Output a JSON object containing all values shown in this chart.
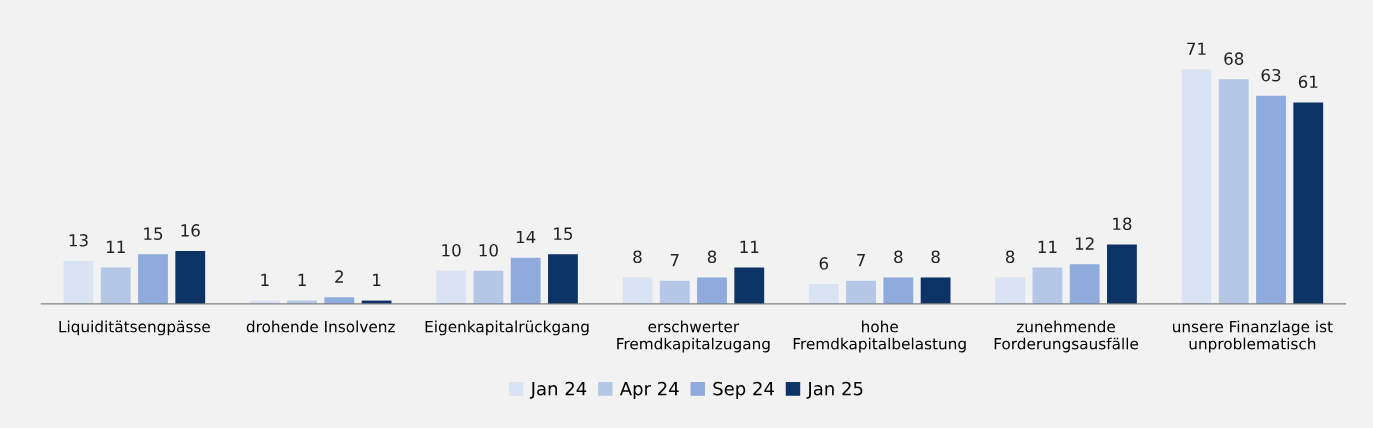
{
  "chart_data": {
    "type": "bar",
    "categories": [
      "Liquiditätsengpässe",
      "drohende Insolvenz",
      "Eigenkapitalrückgang",
      "erschwerter\nFremdkapitalzugang",
      "hohe\nFremdkapitalbelastung",
      "zunehmende\nForderungsausfälle",
      "unsere Finanzlage ist\nunproblematisch"
    ],
    "series": [
      {
        "name": "Jan 24",
        "color": "#dae3f3",
        "values": [
          13,
          1,
          10,
          8,
          6,
          8,
          71
        ]
      },
      {
        "name": "Apr 24",
        "color": "#b4c7e7",
        "values": [
          11,
          1,
          10,
          7,
          7,
          11,
          68
        ]
      },
      {
        "name": "Sep 24",
        "color": "#8faadc",
        "values": [
          15,
          2,
          14,
          8,
          8,
          12,
          63
        ]
      },
      {
        "name": "Jan 25",
        "color": "#0b3366",
        "values": [
          16,
          1,
          15,
          11,
          8,
          18,
          61
        ]
      }
    ],
    "data_labels": true,
    "legend": "bottom",
    "grid": false,
    "tick_labels": "x"
  }
}
